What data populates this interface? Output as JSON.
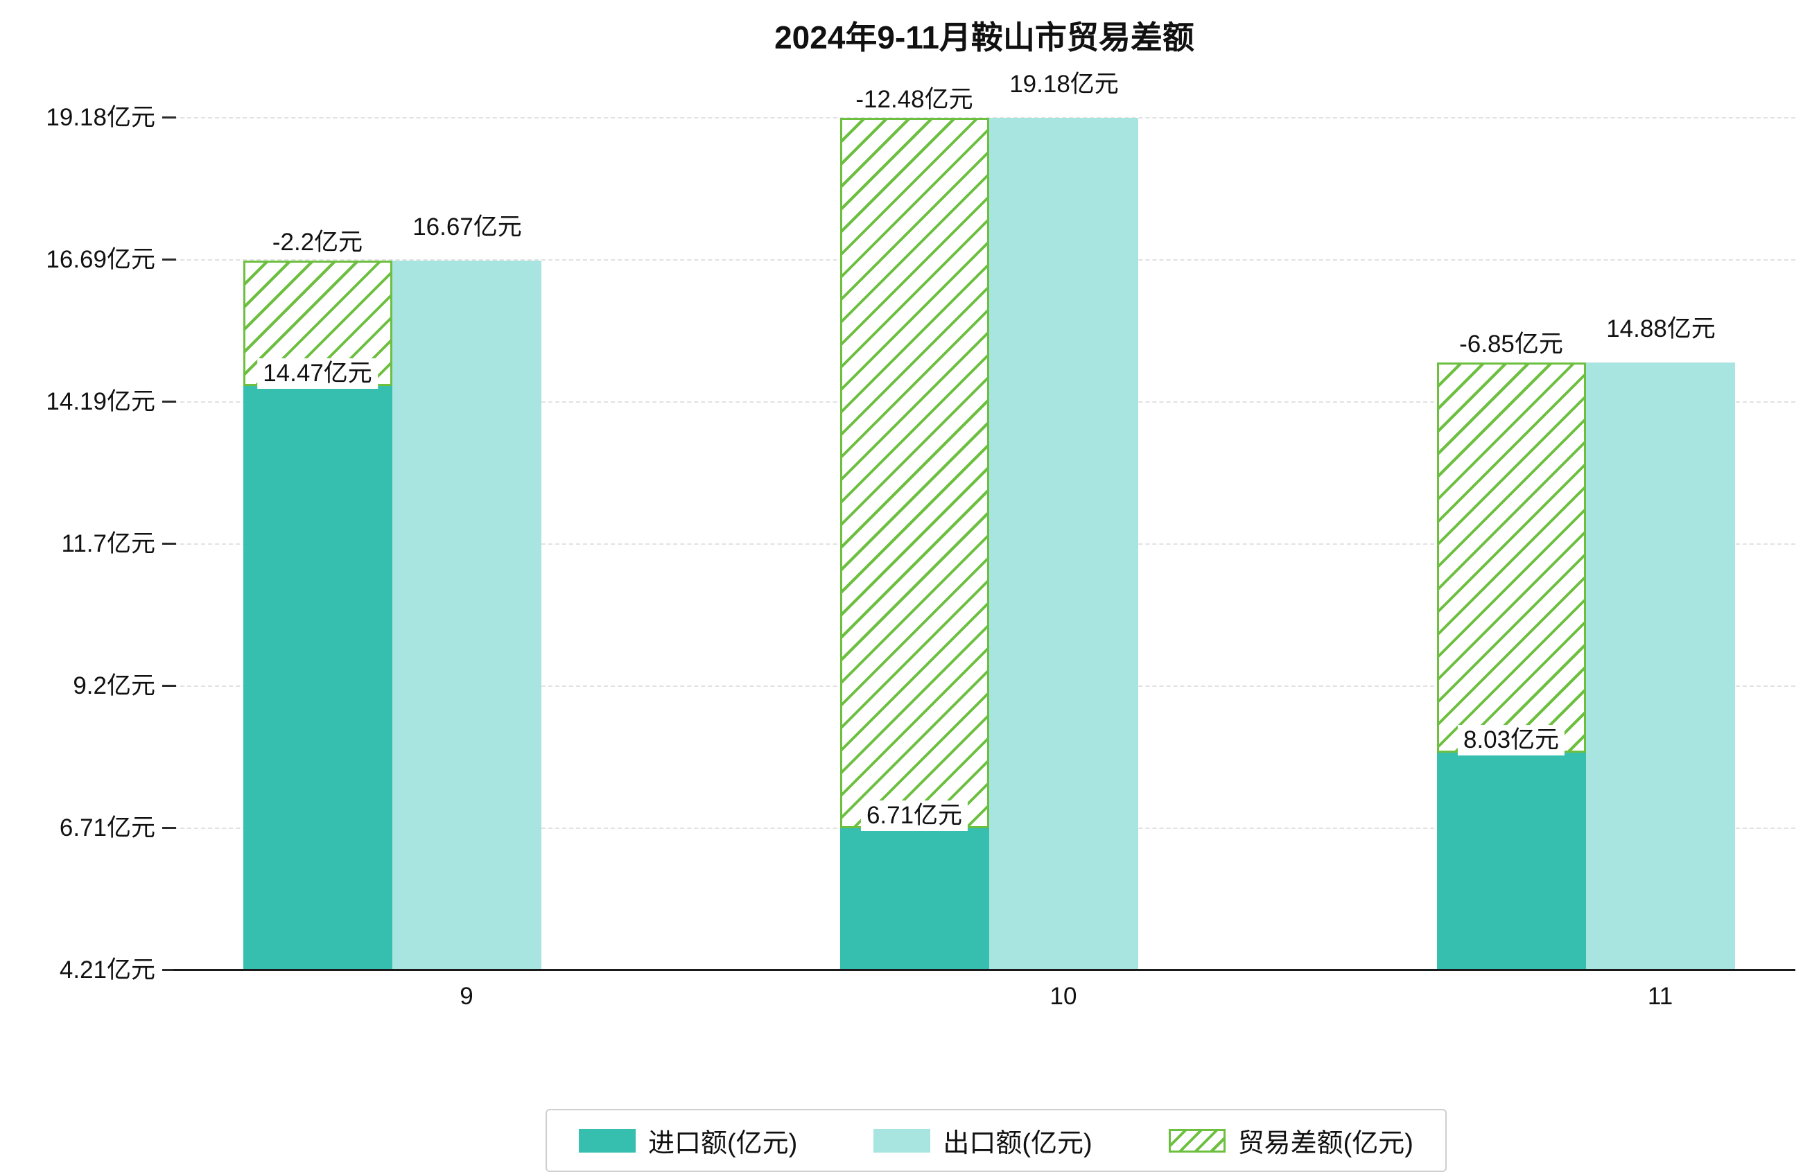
{
  "chart_data": {
    "type": "bar",
    "title": "2024年9-11月鞍山市贸易差额",
    "categories": [
      "9",
      "10",
      "11"
    ],
    "unit": "亿元",
    "series": [
      {
        "name": "进口额(亿元)",
        "role": "import",
        "values": [
          14.47,
          6.71,
          8.03
        ],
        "labels": [
          "14.47亿元",
          "6.71亿元",
          "8.03亿元"
        ],
        "color": "#36bfae"
      },
      {
        "name": "出口额(亿元)",
        "role": "export",
        "values": [
          16.67,
          19.18,
          14.88
        ],
        "labels": [
          "16.67亿元",
          "19.18亿元",
          "14.88亿元"
        ],
        "color": "#a9e5e0"
      },
      {
        "name": "贸易差额(亿元)",
        "role": "trade-balance",
        "values": [
          -2.2,
          -12.48,
          -6.85
        ],
        "labels": [
          "-2.2亿元",
          "-12.48亿元",
          "-6.85亿元"
        ],
        "color": "#6cbf3f",
        "hatch": true
      }
    ],
    "y_ticks": [
      {
        "value": 4.21,
        "label": "4.21亿元"
      },
      {
        "value": 6.71,
        "label": "6.71亿元"
      },
      {
        "value": 9.2,
        "label": "9.2亿元"
      },
      {
        "value": 11.7,
        "label": "11.7亿元"
      },
      {
        "value": 14.19,
        "label": "14.19亿元"
      },
      {
        "value": 16.69,
        "label": "16.69亿元"
      },
      {
        "value": 19.18,
        "label": "19.18亿元"
      }
    ],
    "ylim": [
      4.21,
      19.18
    ],
    "grid": "dashed-horizontal",
    "legend_position": "bottom-center",
    "axis_color": "#1a1a1a",
    "background_color": "#ffffff"
  }
}
